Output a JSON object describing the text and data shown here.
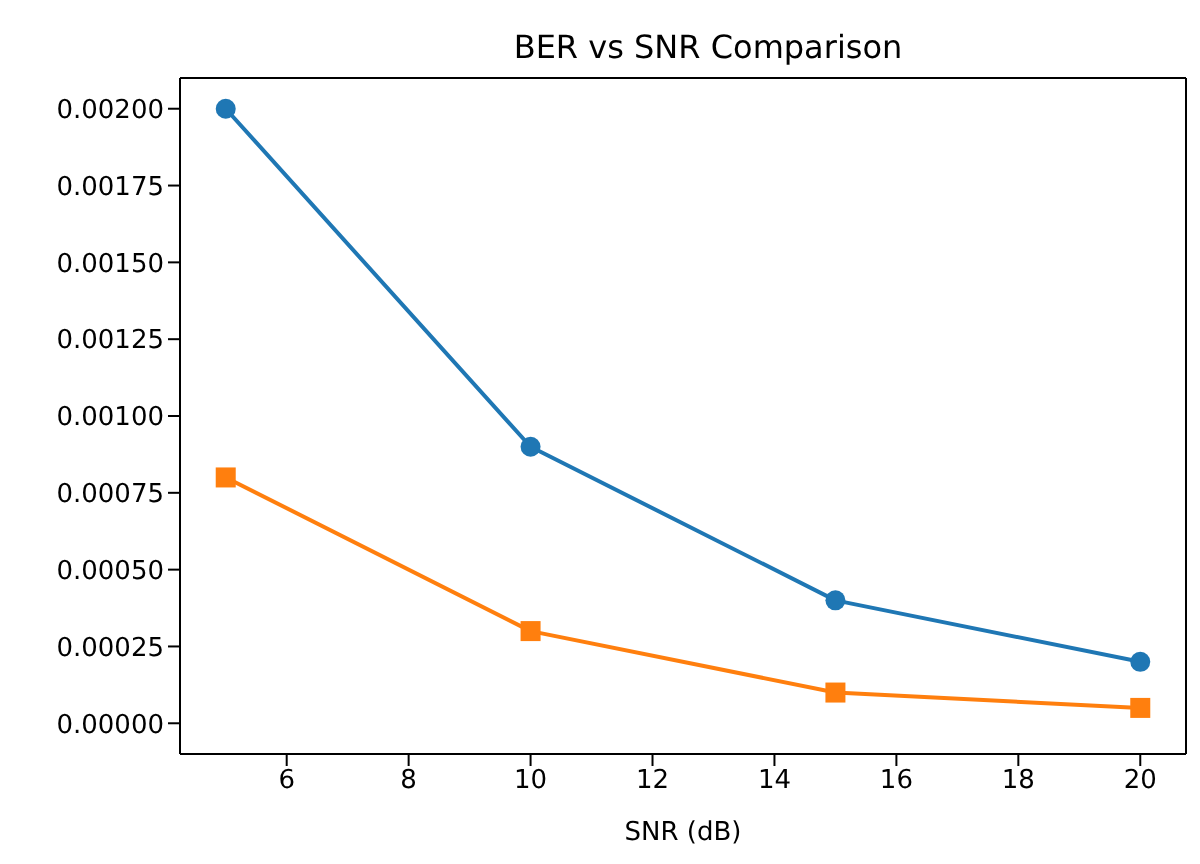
{
  "chart_data": {
    "type": "line",
    "title": "BER vs SNR Comparison",
    "xlabel": "SNR (dB)",
    "x": [
      5,
      10,
      15,
      20
    ],
    "series": [
      {
        "color": "#1f77b4",
        "values": [
          0.002,
          0.0009,
          0.0004,
          0.0002
        ],
        "marker": "circle"
      },
      {
        "color": "#ff7f0e",
        "values": [
          0.0008,
          0.0003,
          0.0001,
          5e-05
        ],
        "marker": "square"
      }
    ],
    "xlim": [
      4.25,
      20.75
    ],
    "xticks": [
      6,
      8,
      10,
      12,
      14,
      16,
      18,
      20
    ],
    "ylim": [
      -0.0001,
      0.0021
    ],
    "yticks": [
      {
        "value": 0,
        "label": "0.00000"
      },
      {
        "value": 0.00025,
        "label": "0.00025"
      },
      {
        "value": 0.0005,
        "label": "0.00050"
      },
      {
        "value": 0.00075,
        "label": "0.00075"
      },
      {
        "value": 0.001,
        "label": "0.00100"
      },
      {
        "value": 0.00125,
        "label": "0.00125"
      },
      {
        "value": 0.0015,
        "label": "0.00150"
      },
      {
        "value": 0.00175,
        "label": "0.00175"
      },
      {
        "value": 0.002,
        "label": "0.00200"
      }
    ],
    "grid": false,
    "legend": false,
    "line_style": "solid"
  }
}
